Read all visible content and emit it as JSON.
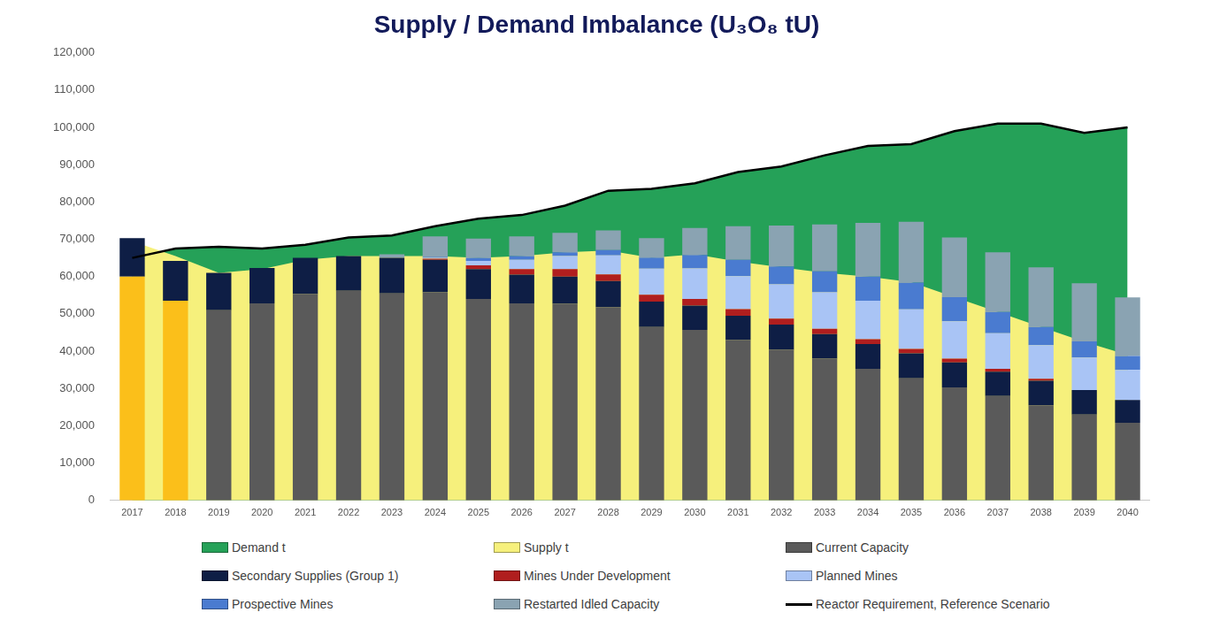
{
  "chart_data": {
    "type": "bar",
    "title": "Supply / Demand Imbalance (U₃O₈ tU)",
    "categories": [
      "2017",
      "2018",
      "2019",
      "2020",
      "2021",
      "2022",
      "2023",
      "2024",
      "2025",
      "2026",
      "2027",
      "2028",
      "2029",
      "2030",
      "2031",
      "2032",
      "2033",
      "2034",
      "2035",
      "2036",
      "2037",
      "2038",
      "2039",
      "2040"
    ],
    "stacked": true,
    "grid": false,
    "legend": "bottom",
    "ylim": [
      0,
      120000
    ],
    "yticks": [
      0,
      {
        "value": 10000,
        "label": "10,000"
      },
      {
        "value": 20000,
        "label": "20,000"
      },
      {
        "value": 30000,
        "label": "30,000"
      },
      {
        "value": 40000,
        "label": "40,000"
      },
      {
        "value": 50000,
        "label": "50,000"
      },
      {
        "value": 60000,
        "label": "60,000"
      },
      {
        "value": 70000,
        "label": "70,000"
      },
      {
        "value": 80000,
        "label": "80,000"
      },
      {
        "value": 90000,
        "label": "90,000"
      },
      {
        "value": 100000,
        "label": "100,000"
      },
      {
        "value": 110000,
        "label": "110,000"
      },
      {
        "value": 120000,
        "label": "120,000"
      }
    ],
    "series": [
      {
        "name": "Demand t",
        "type": "area",
        "color": "#25a158",
        "values": [
          65000,
          67500,
          68000,
          67500,
          68500,
          70500,
          71000,
          73500,
          75500,
          76500,
          79000,
          83000,
          83500,
          85000,
          88000,
          89500,
          92500,
          95000,
          95500,
          99000,
          101000,
          101000,
          98500,
          100000
        ]
      },
      {
        "name": "Supply t",
        "type": "area",
        "color": "#f6f07c",
        "values": [
          69500,
          65500,
          61000,
          62000,
          64500,
          65500,
          65500,
          65500,
          65000,
          65500,
          66500,
          67000,
          65000,
          66000,
          64000,
          62500,
          61000,
          60000,
          58500,
          54500,
          50500,
          46500,
          42500,
          39000
        ]
      },
      {
        "name": "Current Capacity",
        "type": "bar",
        "color": "#5a5a5a",
        "colors": [
          "#fbbf1a",
          "#fbbf1a",
          "#5a5a5a",
          "#5a5a5a",
          "#5a5a5a",
          "#5a5a5a",
          "#5a5a5a",
          "#5a5a5a",
          "#5a5a5a",
          "#5a5a5a",
          "#5a5a5a",
          "#5a5a5a",
          "#5a5a5a",
          "#5a5a5a",
          "#5a5a5a",
          "#5a5a5a",
          "#5a5a5a",
          "#5a5a5a",
          "#5a5a5a",
          "#5a5a5a",
          "#5a5a5a",
          "#5a5a5a",
          "#5a5a5a",
          "#5a5a5a"
        ],
        "values": [
          60000,
          53500,
          51000,
          52800,
          55300,
          56200,
          55500,
          55800,
          54000,
          52800,
          52700,
          51800,
          46500,
          45700,
          43000,
          40400,
          38000,
          35300,
          32700,
          30300,
          28000,
          25500,
          23000,
          20800
        ]
      },
      {
        "name": "Secondary Supplies (Group 1)",
        "type": "bar",
        "color": "#0e1e45",
        "values": [
          10300,
          10700,
          10000,
          9500,
          9700,
          9300,
          9500,
          8700,
          8000,
          7700,
          7300,
          7000,
          6800,
          6500,
          6500,
          6700,
          6600,
          6600,
          6700,
          6700,
          6500,
          6600,
          6600,
          6100
        ]
      },
      {
        "name": "Mines Under Development",
        "type": "bar",
        "color": "#b01e1e",
        "values": [
          0,
          0,
          0,
          0,
          0,
          0,
          0,
          300,
          1000,
          1500,
          2000,
          1800,
          1800,
          1800,
          1800,
          1600,
          1400,
          1300,
          1200,
          1000,
          800,
          500,
          0,
          0
        ]
      },
      {
        "name": "Planned Mines",
        "type": "bar",
        "color": "#a9c4f5",
        "values": [
          0,
          0,
          0,
          0,
          0,
          0,
          0,
          200,
          1200,
          2500,
          3500,
          5100,
          7000,
          8200,
          8800,
          9200,
          9800,
          10300,
          10600,
          10000,
          9500,
          9000,
          8700,
          8100
        ]
      },
      {
        "name": "Prospective Mines",
        "type": "bar",
        "color": "#4a7bd0",
        "values": [
          0,
          0,
          0,
          0,
          0,
          0,
          0,
          300,
          800,
          1000,
          1000,
          1400,
          3000,
          3600,
          4400,
          4800,
          5600,
          6500,
          7200,
          6500,
          5700,
          4900,
          4300,
          3700
        ]
      },
      {
        "name": "Restarted Idled Capacity",
        "type": "bar",
        "color": "#8aa3b2",
        "values": [
          0,
          0,
          0,
          0,
          0,
          0,
          1000,
          5500,
          5200,
          5300,
          5200,
          5300,
          5200,
          7200,
          9000,
          11000,
          12600,
          14400,
          16300,
          16000,
          16000,
          16000,
          15600,
          15700
        ]
      },
      {
        "name": "Reactor Requirement, Reference Scenario",
        "type": "line",
        "color": "#000000",
        "values": [
          65000,
          67500,
          68000,
          67500,
          68500,
          70500,
          71000,
          73500,
          75500,
          76500,
          79000,
          83000,
          83500,
          85000,
          88000,
          89500,
          92500,
          95000,
          95500,
          99000,
          101000,
          101000,
          98500,
          100000
        ]
      }
    ]
  }
}
